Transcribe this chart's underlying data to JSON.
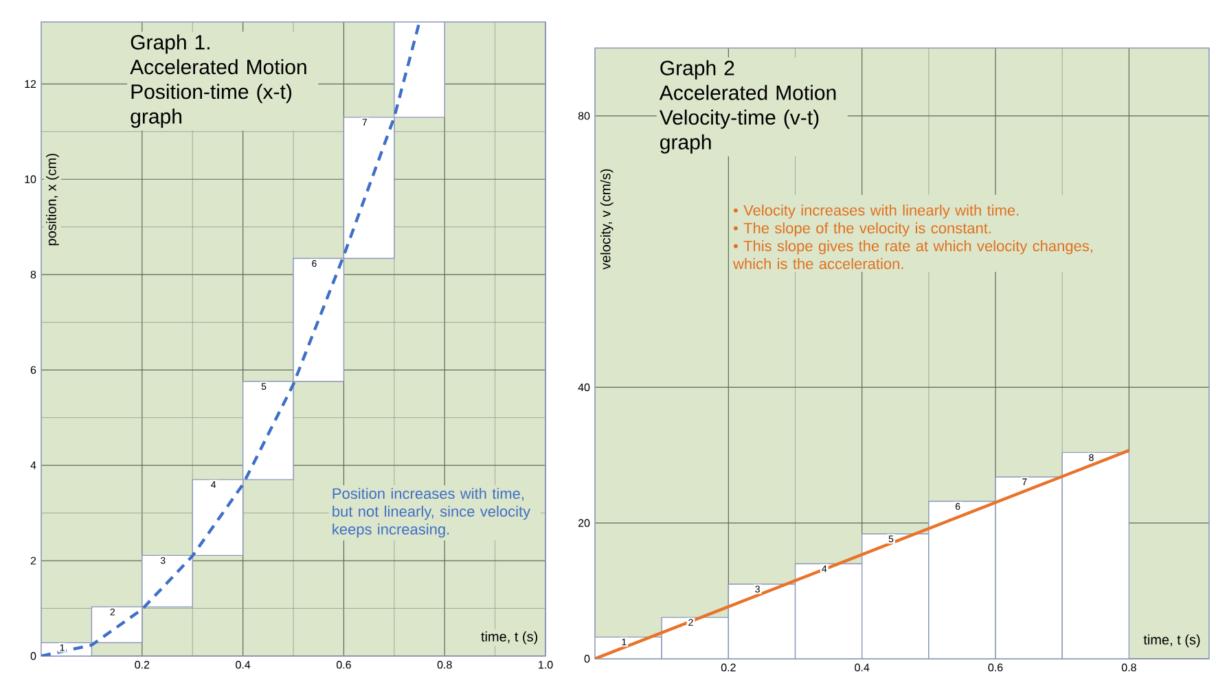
{
  "chart_data": [
    {
      "type": "line",
      "title": "Graph 1.",
      "subtitle": "Accelerated Motion Position-time (x-t) graph",
      "xlabel": "time, t (s)",
      "ylabel": "position, x (cm)",
      "xlim": [
        0,
        1.0
      ],
      "ylim": [
        0,
        13.3
      ],
      "xticks": [
        0.2,
        0.4,
        0.6,
        0.8,
        {
          "value": 1.0,
          "label": "1.0"
        }
      ],
      "yticks": [
        0,
        2,
        4,
        6,
        8,
        10,
        12
      ],
      "grid": true,
      "series": [
        {
          "type": "bar",
          "color": "#ffffff",
          "x": [
            0.05,
            0.15,
            0.25,
            0.35,
            0.45,
            0.55,
            0.65,
            0.75
          ],
          "base": [
            0,
            0.28,
            1.03,
            2.11,
            3.7,
            5.76,
            8.34,
            11.3
          ],
          "values": [
            0.28,
            0.75,
            1.08,
            1.59,
            2.06,
            2.58,
            2.96,
            2.0
          ]
        },
        {
          "color": "#3f6fc6",
          "line_style": "dashed",
          "x": [
            0,
            0.1,
            0.2,
            0.3,
            0.4,
            0.5,
            0.6,
            0.7,
            0.75
          ],
          "values": [
            0,
            0.23,
            0.98,
            2.1,
            3.6,
            5.7,
            8.4,
            11.3,
            13.3
          ]
        }
      ],
      "annotations": [
        "Position increases with time, but not linearly, since velocity keeps increasing.",
        {
          "text": "1",
          "x": 0.05,
          "y": 0.28
        },
        {
          "text": "2",
          "x": 0.15,
          "y": 1.03
        },
        {
          "text": "3",
          "x": 0.25,
          "y": 2.11
        },
        {
          "text": "4",
          "x": 0.35,
          "y": 3.7
        },
        {
          "text": "5",
          "x": 0.45,
          "y": 5.76
        },
        {
          "text": "6",
          "x": 0.55,
          "y": 8.34
        },
        {
          "text": "7",
          "x": 0.65,
          "y": 11.3
        }
      ]
    },
    {
      "type": "line",
      "title": "Graph 2",
      "subtitle": "Accelerated Motion Velocity-time (v-t) graph",
      "xlabel": "time, t (s)",
      "ylabel": "velocity, v (cm/s)",
      "xlim": [
        0,
        0.92
      ],
      "ylim": [
        0,
        90
      ],
      "xticks": [
        0.2,
        0.4,
        0.6,
        0.8
      ],
      "yticks": [
        0,
        20,
        40,
        80
      ],
      "grid": true,
      "series": [
        {
          "type": "bar",
          "color": "#ffffff",
          "x": [
            0.05,
            0.15,
            0.25,
            0.35,
            0.45,
            0.55,
            0.65,
            0.75
          ],
          "values": [
            3.2,
            6.1,
            11.0,
            14.0,
            18.4,
            23.2,
            26.8,
            30.4
          ]
        },
        {
          "color": "#e8732a",
          "x": [
            0,
            0.8
          ],
          "values": [
            0,
            30.7
          ]
        }
      ],
      "annotations": [
        "• Velocity increases with linearly with time.",
        "• The slope of the velocity is constant.",
        "• This slope gives the rate at which velocity changes, which is the acceleration.",
        {
          "text": "1",
          "x": 0.05,
          "y": 3.2
        },
        {
          "text": "2",
          "x": 0.15,
          "y": 6.1
        },
        {
          "text": "3",
          "x": 0.25,
          "y": 11.0
        },
        {
          "text": "4",
          "x": 0.35,
          "y": 14.0
        },
        {
          "text": "5",
          "x": 0.45,
          "y": 18.4
        },
        {
          "text": "6",
          "x": 0.55,
          "y": 23.2
        },
        {
          "text": "7",
          "x": 0.65,
          "y": 26.8
        },
        {
          "text": "8",
          "x": 0.75,
          "y": 30.4
        }
      ]
    }
  ]
}
